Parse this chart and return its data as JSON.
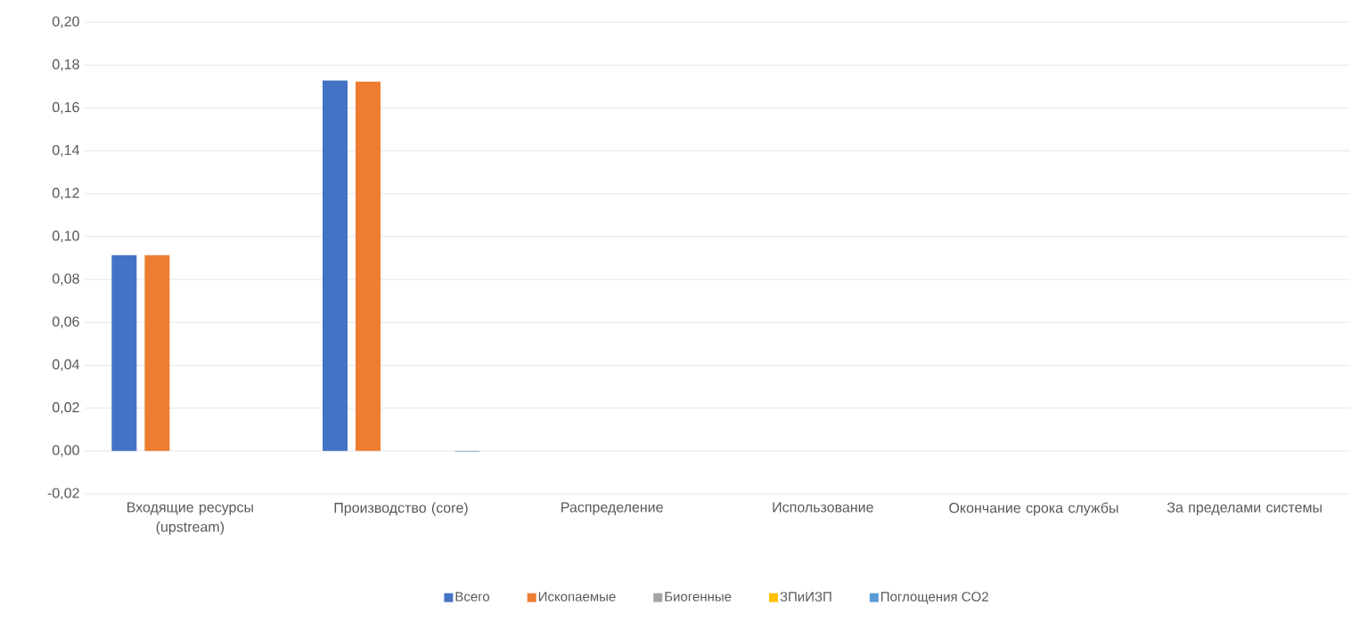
{
  "chart_data": {
    "type": "bar",
    "categories": [
      "Входящие ресурсы (upstream)",
      "Производство (core)",
      "Распределение",
      "Использование",
      "Окончание срока службы",
      "За пределами системы"
    ],
    "series": [
      {
        "name": "Всего",
        "color": "#4472c4",
        "values": [
          0.0913,
          0.1728,
          0,
          0,
          0,
          0
        ]
      },
      {
        "name": "Ископаемые",
        "color": "#ed7d31",
        "values": [
          0.0913,
          0.1723,
          0,
          0,
          0,
          0
        ]
      },
      {
        "name": "Биогенные",
        "color": "#a5a5a5",
        "values": [
          0,
          0,
          0,
          0,
          0,
          0
        ]
      },
      {
        "name": "ЗПиИЗП",
        "color": "#ffc000",
        "values": [
          0,
          0,
          0,
          0,
          0,
          0
        ]
      },
      {
        "name": "Поглощения CO2",
        "color": "#5b9bd5",
        "values": [
          0,
          -0.0003,
          0,
          0,
          0,
          0
        ]
      }
    ],
    "ylim": [
      -0.02,
      0.2
    ],
    "yticks": [
      {
        "value": -0.02,
        "label": "-0,02"
      },
      {
        "value": 0,
        "label": "0,00"
      },
      {
        "value": 0.02,
        "label": "0,02"
      },
      {
        "value": 0.04,
        "label": "0,04"
      },
      {
        "value": 0.06,
        "label": "0,06"
      },
      {
        "value": 0.08,
        "label": "0,08"
      },
      {
        "value": 0.1,
        "label": "0,10"
      },
      {
        "value": 0.12,
        "label": "0,12"
      },
      {
        "value": 0.14,
        "label": "0,14"
      },
      {
        "value": 0.16,
        "label": "0,16"
      },
      {
        "value": 0.18,
        "label": "0,18"
      },
      {
        "value": 0.2,
        "label": "0,20"
      }
    ],
    "grid": "y",
    "legend": "bottom"
  }
}
